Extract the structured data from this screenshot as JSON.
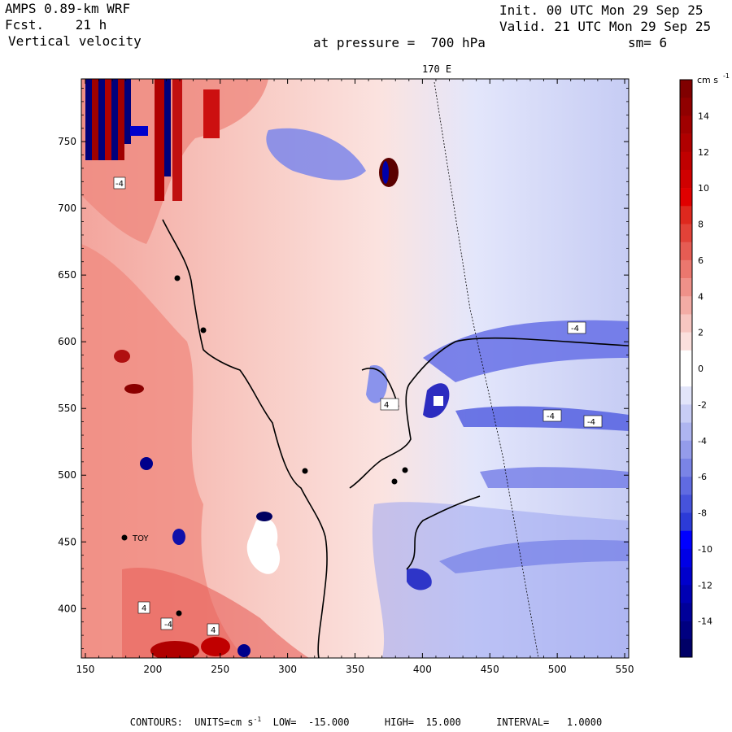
{
  "header": {
    "model": "AMPS 0.89-km WRF",
    "fcst": "Fcst.    21 h",
    "field": "Vertical velocity",
    "init": "Init. 00 UTC Mon 29 Sep 25",
    "valid": "Valid. 21 UTC Mon 29 Sep 25",
    "pressure": "at pressure =  700 hPa",
    "smoothing": "sm= 6"
  },
  "map": {
    "meridian_label": "170 E",
    "x_ticks": [
      150,
      200,
      250,
      300,
      350,
      400,
      450,
      500,
      550
    ],
    "y_ticks": [
      400,
      450,
      500,
      550,
      600,
      650,
      700,
      750
    ],
    "x_range": [
      147,
      553
    ],
    "y_range": [
      363,
      797
    ],
    "contour_labels": [
      "-4",
      "4",
      "-4",
      "4",
      "4",
      "-4",
      "-4",
      "-4"
    ],
    "station_label": "TOY",
    "colors": {
      "positive_max": "#8b0000",
      "positive_mid": "#ff0000",
      "positive_low": "#f4a09a",
      "zero": "#ffffff",
      "negative_low": "#9aa6f0",
      "negative_mid": "#0000ff",
      "negative_max": "#00008b"
    }
  },
  "colorbar": {
    "units": "cm s",
    "units_exp": "-1",
    "labels": [
      "14",
      "12",
      "10",
      "8",
      "6",
      "4",
      "2",
      "0",
      "-2",
      "-4",
      "-6",
      "-8",
      "-10",
      "-12",
      "-14"
    ],
    "min": -16,
    "max": 16
  },
  "footer": {
    "contours": "CONTOURS:",
    "units_prefix": "UNITS=cm s",
    "units_exp": "-1",
    "low": "LOW=  -15.000",
    "high": "HIGH=  15.000",
    "interval": "INTERVAL=   1.0000"
  }
}
